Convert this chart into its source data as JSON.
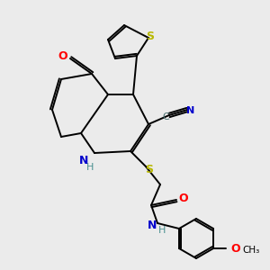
{
  "background_color": "#ebebeb",
  "bond_color": "#000000",
  "colors": {
    "S": "#b8b800",
    "N": "#0000cc",
    "O": "#ff0000",
    "H": "#4a9090",
    "C_cyan": "#4a7070",
    "black": "#000000"
  },
  "figsize": [
    3.0,
    3.0
  ],
  "dpi": 100
}
